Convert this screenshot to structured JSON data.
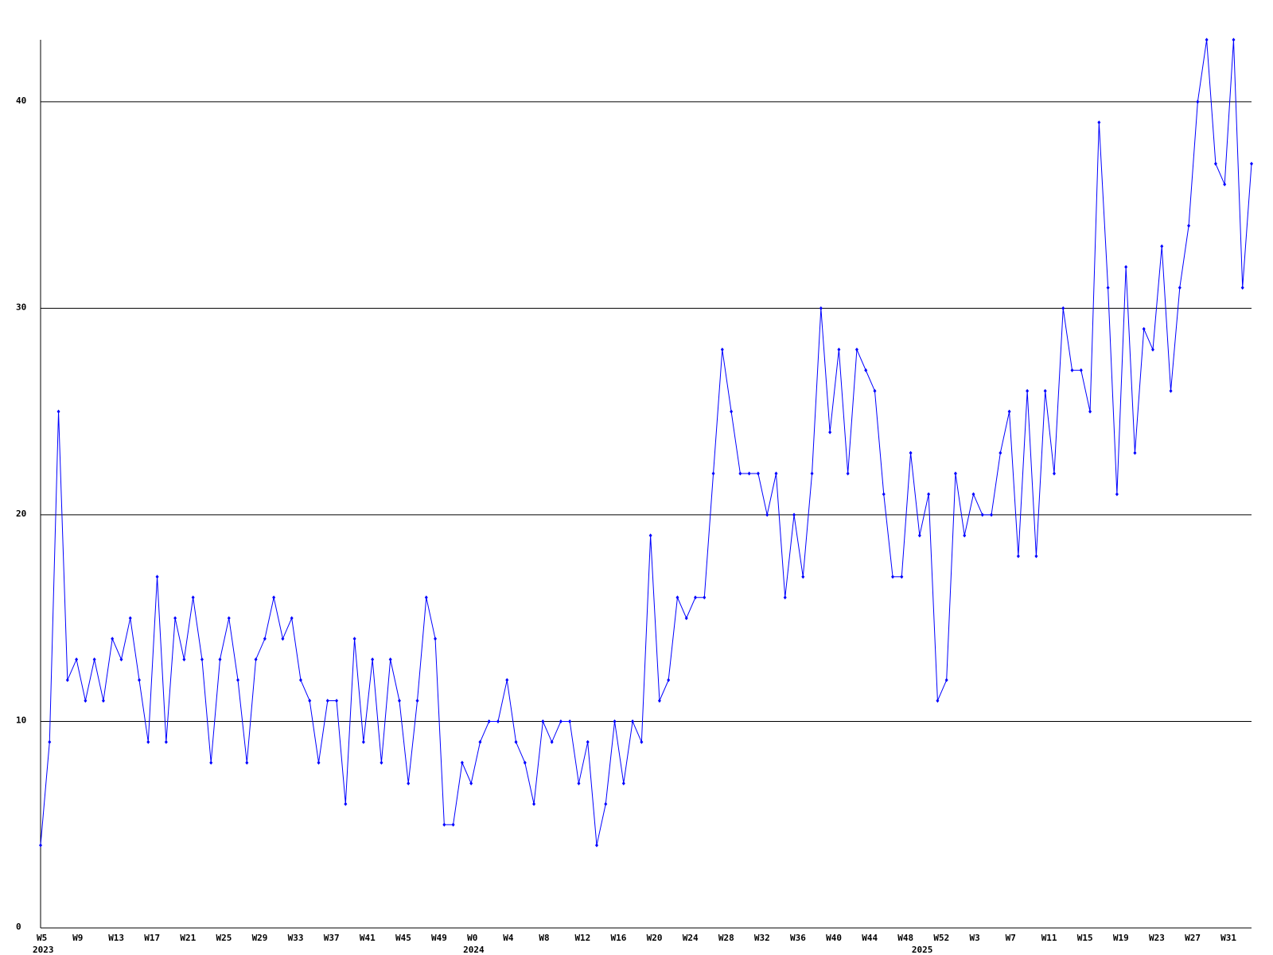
{
  "chart_data": {
    "type": "line",
    "categories": [
      "W5",
      null,
      null,
      null,
      "W9",
      null,
      null,
      null,
      "W13",
      null,
      null,
      null,
      "W17",
      null,
      null,
      null,
      "W21",
      null,
      null,
      null,
      "W25",
      null,
      null,
      null,
      "W29",
      null,
      null,
      null,
      "W33",
      null,
      null,
      null,
      "W37",
      null,
      null,
      null,
      "W41",
      null,
      null,
      null,
      "W45",
      null,
      null,
      null,
      "W49",
      null,
      null,
      null,
      "W0",
      null,
      null,
      null,
      "W4",
      null,
      null,
      null,
      "W8",
      null,
      null,
      null,
      "W12",
      null,
      null,
      null,
      "W16",
      null,
      null,
      null,
      "W20",
      null,
      null,
      null,
      "W24",
      null,
      null,
      null,
      "W28",
      null,
      null,
      null,
      "W32",
      null,
      null,
      null,
      "W36",
      null,
      null,
      null,
      "W40",
      null,
      null,
      null,
      "W44",
      null,
      null,
      null,
      "W48",
      null,
      null,
      null,
      "W52",
      null,
      null,
      null,
      "W3",
      null,
      null,
      null,
      "W7",
      null,
      null,
      null,
      "W11",
      null,
      null,
      null,
      "W15",
      null,
      null,
      null,
      "W19",
      null,
      null,
      null,
      "W23",
      null,
      null,
      null,
      "W27",
      null,
      null,
      null,
      "W31",
      null,
      null,
      null
    ],
    "years": [
      "2023",
      null,
      null,
      null,
      null,
      null,
      null,
      null,
      null,
      null,
      null,
      null,
      null,
      null,
      null,
      null,
      null,
      null,
      null,
      null,
      null,
      null,
      null,
      null,
      null,
      null,
      null,
      null,
      null,
      null,
      null,
      null,
      null,
      null,
      null,
      null,
      null,
      null,
      null,
      null,
      null,
      null,
      null,
      null,
      null,
      null,
      null,
      null,
      "2024",
      null,
      null,
      null,
      null,
      null,
      null,
      null,
      null,
      null,
      null,
      null,
      null,
      null,
      null,
      null,
      null,
      null,
      null,
      null,
      null,
      null,
      null,
      null,
      null,
      null,
      null,
      null,
      null,
      null,
      null,
      null,
      null,
      null,
      null,
      null,
      null,
      null,
      null,
      null,
      null,
      null,
      null,
      null,
      null,
      null,
      null,
      null,
      null,
      null,
      "2025",
      null,
      null,
      null,
      null,
      null,
      null,
      null,
      null,
      null,
      null,
      null,
      null,
      null,
      null,
      null,
      null,
      null,
      null,
      null,
      null,
      null,
      null,
      null,
      null,
      null,
      null,
      null,
      null,
      null,
      null,
      null,
      null,
      null,
      null,
      null
    ],
    "series": [
      {
        "color": "#0000ff",
        "values": [
          4,
          9,
          25,
          12,
          13,
          11,
          13,
          11,
          14,
          13,
          15,
          12,
          9,
          17,
          9,
          15,
          13,
          16,
          13,
          8,
          13,
          15,
          12,
          8,
          13,
          14,
          16,
          14,
          15,
          12,
          11,
          8,
          11,
          11,
          6,
          14,
          9,
          13,
          8,
          13,
          11,
          7,
          11,
          16,
          14,
          5,
          5,
          8,
          7,
          9,
          10,
          10,
          12,
          9,
          8,
          6,
          10,
          9,
          10,
          10,
          7,
          9,
          4,
          6,
          10,
          7,
          10,
          9,
          19,
          11,
          12,
          16,
          15,
          16,
          16,
          22,
          28,
          25,
          22,
          22,
          22,
          20,
          22,
          16,
          20,
          17,
          22,
          30,
          24,
          28,
          22,
          28,
          27,
          26,
          21,
          17,
          17,
          23,
          19,
          21,
          11,
          12,
          22,
          19,
          21,
          20,
          20,
          23,
          25,
          18,
          26,
          18,
          26,
          22,
          30,
          27,
          27,
          25,
          39,
          31,
          21,
          32,
          23,
          29,
          28,
          33,
          26,
          31,
          34,
          40,
          43,
          37,
          36,
          43,
          31,
          37
        ]
      }
    ],
    "ylim": [
      0,
      43
    ],
    "yticks": [
      0,
      10,
      20,
      30,
      40
    ],
    "grid": true
  }
}
